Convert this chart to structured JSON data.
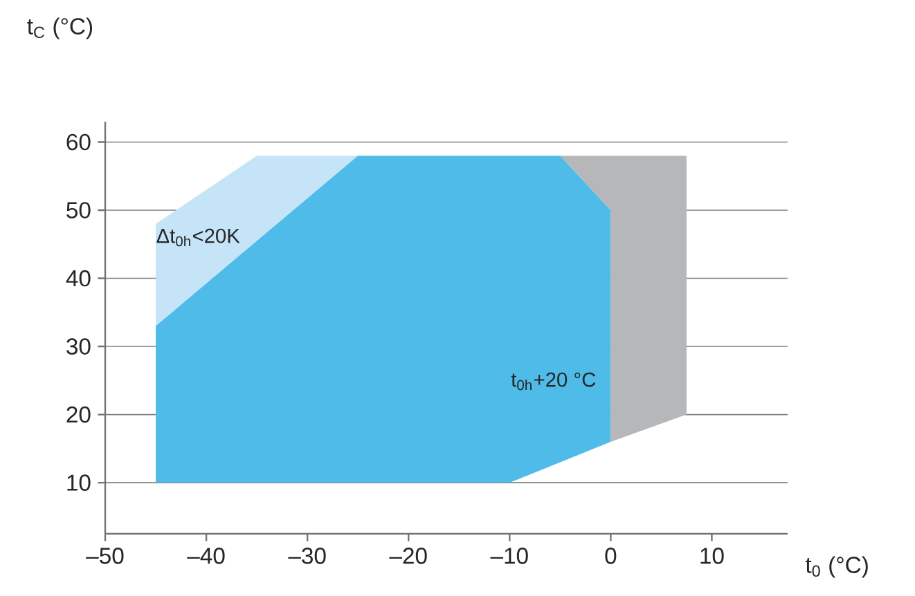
{
  "chart_data": {
    "type": "area",
    "xlabel": "t$_{0}$ (°C)",
    "ylabel": "t$_{C}$ (°C)",
    "xlim": [
      -50,
      17.5
    ],
    "ylim": [
      2.5,
      63
    ],
    "xticks": [
      {
        "value": -50,
        "label": "–50"
      },
      {
        "value": -40,
        "label": "–40"
      },
      {
        "value": -30,
        "label": "–30"
      },
      {
        "value": -20,
        "label": "–20"
      },
      {
        "value": -10,
        "label": "–10"
      },
      0,
      10
    ],
    "yticks": [
      10,
      20,
      30,
      40,
      50,
      60
    ],
    "grid": "y",
    "series": [
      {
        "color": "#c6e4f7",
        "x": [
          -45,
          -45,
          -35,
          -25
        ],
        "values": [
          33,
          48,
          58,
          58
        ]
      },
      {
        "color": "#4fbbe9",
        "x": [
          -45,
          -45,
          -25,
          -5,
          0,
          0,
          -10,
          -45
        ],
        "values": [
          10,
          33,
          58,
          58,
          50,
          16,
          10,
          10
        ]
      },
      {
        "color": "#b6b7b9",
        "x": [
          -5,
          7.5,
          7.5,
          0,
          0,
          -5
        ],
        "values": [
          58,
          58,
          20,
          16,
          50,
          58
        ]
      }
    ],
    "annotations": [
      {
        "text": "Δt$_{0h}$<20K",
        "x": -45,
        "y": 46
      },
      "t$_{0h}$+20 °C"
    ]
  }
}
